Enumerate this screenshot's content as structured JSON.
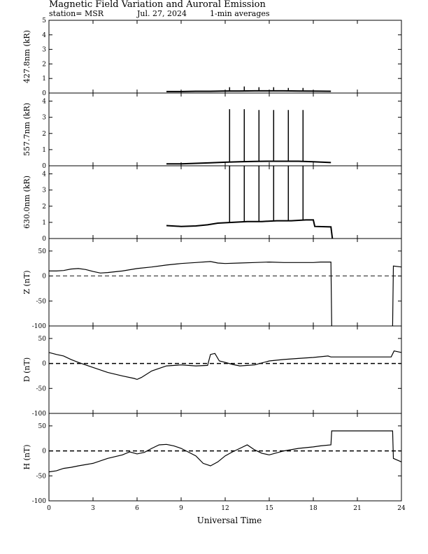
{
  "header": {
    "title": "Magnetic Field Variation and Auroral Emission",
    "station": "station= MSR",
    "date": "Jul.  27,  2024",
    "averaging": "1-min averages"
  },
  "chart_data": [
    {
      "type": "line",
      "ylabel": "427.8nm (kR)",
      "ylim": [
        0,
        5
      ],
      "yticks": [
        0,
        1,
        2,
        3,
        4,
        5
      ],
      "xlim": [
        0,
        24
      ],
      "baseline": null,
      "segments": [
        {
          "x": [
            8.0,
            9.0,
            10.0,
            11.0,
            12.0,
            13.0,
            14.0,
            15.0,
            16.0,
            17.0,
            18.0,
            19.2
          ],
          "y": [
            0.1,
            0.1,
            0.12,
            0.12,
            0.14,
            0.14,
            0.15,
            0.15,
            0.15,
            0.14,
            0.13,
            0.12
          ]
        }
      ],
      "spikes": [
        {
          "x": 12.3,
          "y": 0.4
        },
        {
          "x": 13.3,
          "y": 0.45
        },
        {
          "x": 14.3,
          "y": 0.4
        },
        {
          "x": 15.3,
          "y": 0.4
        },
        {
          "x": 16.3,
          "y": 0.35
        },
        {
          "x": 17.3,
          "y": 0.35
        }
      ]
    },
    {
      "type": "line",
      "ylabel": "557.7nm (kR)",
      "ylim": [
        0,
        4.5
      ],
      "yticks": [
        0,
        1,
        2,
        3,
        4
      ],
      "xlim": [
        0,
        24
      ],
      "baseline": null,
      "segments": [
        {
          "x": [
            8.0,
            9.0,
            10.0,
            11.0,
            12.0,
            13.0,
            14.0,
            15.0,
            16.0,
            17.0,
            18.0,
            19.2
          ],
          "y": [
            0.12,
            0.12,
            0.15,
            0.18,
            0.22,
            0.25,
            0.27,
            0.28,
            0.28,
            0.28,
            0.25,
            0.2
          ]
        }
      ],
      "spikes": [
        {
          "x": 12.3,
          "y": 3.5
        },
        {
          "x": 13.3,
          "y": 3.5
        },
        {
          "x": 14.3,
          "y": 3.45
        },
        {
          "x": 15.3,
          "y": 3.45
        },
        {
          "x": 16.3,
          "y": 3.45
        },
        {
          "x": 17.3,
          "y": 3.45
        }
      ]
    },
    {
      "type": "line",
      "ylabel": "630.0nm (kR)",
      "ylim": [
        0,
        4.5
      ],
      "yticks": [
        0,
        1,
        2,
        3,
        4
      ],
      "xlim": [
        0,
        24
      ],
      "baseline": null,
      "segments": [
        {
          "x": [
            8.0,
            9.0,
            10.0,
            10.8,
            11.5,
            12.5,
            13.5,
            14.5,
            15.5,
            16.5,
            17.5,
            18.0,
            18.1,
            19.2,
            19.3
          ],
          "y": [
            0.8,
            0.75,
            0.78,
            0.85,
            0.95,
            1.0,
            1.05,
            1.05,
            1.1,
            1.1,
            1.15,
            1.15,
            0.75,
            0.72,
            0.0
          ]
        }
      ],
      "spikes": [
        {
          "x": 12.3,
          "y": 4.5
        },
        {
          "x": 13.3,
          "y": 4.5
        },
        {
          "x": 14.3,
          "y": 4.5
        },
        {
          "x": 15.3,
          "y": 4.5
        },
        {
          "x": 16.3,
          "y": 4.5
        },
        {
          "x": 17.3,
          "y": 4.5
        }
      ]
    },
    {
      "type": "line",
      "ylabel": "Z (nT)",
      "ylim": [
        -100,
        75
      ],
      "yticks": [
        -100,
        -50,
        0,
        50
      ],
      "xlim": [
        0,
        24
      ],
      "baseline": 0,
      "segments": [
        {
          "x": [
            0,
            0.5,
            1.0,
            1.5,
            2.0,
            2.5,
            3.0,
            3.5,
            4.0,
            5.0,
            6.0,
            7.0,
            8.0,
            9.0,
            10.0,
            11.0,
            11.5,
            12.0,
            13.0,
            14.0,
            15.0,
            16.0,
            17.0,
            18.0,
            18.5,
            19.2,
            19.25
          ],
          "y": [
            10,
            10,
            11,
            14,
            15,
            13,
            9,
            6,
            7,
            10,
            15,
            18,
            22,
            25,
            27,
            29,
            26,
            25,
            26,
            27,
            28,
            27,
            27,
            27,
            28,
            28,
            -100
          ]
        },
        {
          "x": [
            23.4,
            23.45,
            24.0
          ],
          "y": [
            -100,
            20,
            18
          ]
        }
      ],
      "spikes": []
    },
    {
      "type": "line",
      "ylabel": "D (nT)",
      "ylim": [
        -100,
        75
      ],
      "yticks": [
        -100,
        -50,
        0,
        50
      ],
      "xlim": [
        0,
        24
      ],
      "baseline": 0,
      "segments": [
        {
          "x": [
            0,
            0.5,
            1.0,
            1.5,
            2.0,
            3.0,
            4.0,
            5.0,
            5.8,
            6.0,
            6.3,
            7.0,
            8.0,
            9.0,
            10.0,
            10.8,
            11.0,
            11.3,
            11.6,
            12.0,
            12.5,
            13.0,
            14.0,
            15.0,
            16.0,
            17.0,
            18.0,
            19.0,
            19.2,
            23.3,
            23.5,
            24.0
          ],
          "y": [
            22,
            18,
            15,
            8,
            2,
            -8,
            -18,
            -25,
            -30,
            -32,
            -28,
            -15,
            -5,
            -3,
            -5,
            -4,
            18,
            20,
            5,
            2,
            -2,
            -5,
            -3,
            5,
            8,
            10,
            12,
            15,
            13,
            13,
            25,
            22
          ]
        }
      ],
      "spikes": []
    },
    {
      "type": "line",
      "ylabel": "H (nT)",
      "ylim": [
        -100,
        75
      ],
      "yticks": [
        -100,
        -50,
        0,
        50
      ],
      "xlim": [
        0,
        24
      ],
      "baseline": 0,
      "segments": [
        {
          "x": [
            0,
            0.5,
            1.0,
            1.5,
            2.0,
            3.0,
            4.0,
            5.0,
            5.5,
            6.0,
            6.5,
            7.0,
            7.5,
            8.0,
            8.5,
            9.0,
            10.0,
            10.5,
            11.0,
            11.5,
            12.0,
            12.5,
            13.0,
            13.5,
            14.0,
            14.5,
            15.0,
            16.0,
            17.0,
            18.0,
            18.5,
            19.2,
            19.25,
            23.4,
            23.45,
            24.0
          ],
          "y": [
            -42,
            -40,
            -35,
            -33,
            -30,
            -25,
            -15,
            -8,
            -2,
            -6,
            -3,
            5,
            12,
            13,
            10,
            5,
            -10,
            -25,
            -30,
            -22,
            -10,
            -2,
            5,
            12,
            2,
            -5,
            -8,
            0,
            5,
            8,
            10,
            12,
            40,
            40,
            -15,
            -22
          ]
        }
      ],
      "spikes": []
    }
  ],
  "x_axis": {
    "label": "Universal Time",
    "ticks": [
      0,
      3,
      6,
      9,
      12,
      15,
      18,
      21,
      24
    ]
  }
}
